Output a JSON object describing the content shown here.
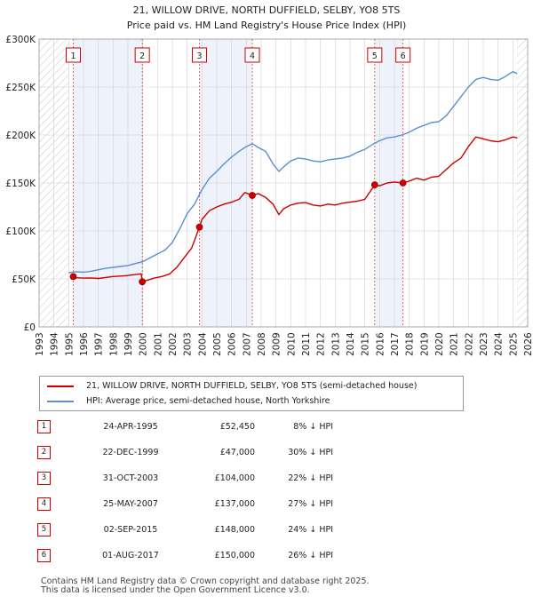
{
  "chart_data": {
    "type": "line",
    "title": "21, WILLOW DRIVE, NORTH DUFFIELD, SELBY, YO8 5TS",
    "subtitle": "Price paid vs. HM Land Registry's House Price Index (HPI)",
    "xlim": [
      1993,
      2026
    ],
    "ylim": [
      0,
      300000
    ],
    "x_ticks": [
      1993,
      1994,
      1995,
      1996,
      1997,
      1998,
      1999,
      2000,
      2001,
      2002,
      2003,
      2004,
      2005,
      2006,
      2007,
      2008,
      2009,
      2010,
      2011,
      2012,
      2013,
      2014,
      2015,
      2016,
      2017,
      2018,
      2019,
      2020,
      2021,
      2022,
      2023,
      2024,
      2025,
      2026
    ],
    "y_ticks": [
      {
        "value": 0,
        "label": "£0"
      },
      {
        "value": 50000,
        "label": "£50K"
      },
      {
        "value": 100000,
        "label": "£100K"
      },
      {
        "value": 150000,
        "label": "£150K"
      },
      {
        "value": 200000,
        "label": "£200K"
      },
      {
        "value": 250000,
        "label": "£250K"
      },
      {
        "value": 300000,
        "label": "£300K"
      }
    ],
    "grid": true,
    "hatched_ranges": [
      [
        1993,
        1995.0
      ],
      [
        2025.25,
        2026
      ]
    ],
    "highlight_ranges": [
      [
        1995.31,
        1999.97
      ],
      [
        2003.83,
        2007.4
      ],
      [
        2015.67,
        2017.58
      ]
    ],
    "series": [
      {
        "name": "21, WILLOW DRIVE, NORTH DUFFIELD, SELBY, YO8 5TS (semi-detached house)",
        "color": "#cc0000",
        "points": [
          [
            1995.31,
            52450
          ],
          [
            1995.5,
            51200
          ],
          [
            1996.0,
            50800
          ],
          [
            1996.5,
            51000
          ],
          [
            1997.0,
            50500
          ],
          [
            1997.5,
            51500
          ],
          [
            1998.0,
            52500
          ],
          [
            1998.5,
            53000
          ],
          [
            1999.0,
            53500
          ],
          [
            1999.5,
            54500
          ],
          [
            1999.9,
            55300
          ],
          [
            1999.97,
            47000
          ],
          [
            2000.3,
            48500
          ],
          [
            2000.8,
            51000
          ],
          [
            2001.3,
            52500
          ],
          [
            2001.8,
            55000
          ],
          [
            2002.3,
            62000
          ],
          [
            2002.8,
            72000
          ],
          [
            2003.3,
            82000
          ],
          [
            2003.83,
            104000
          ],
          [
            2004.0,
            112000
          ],
          [
            2004.5,
            121000
          ],
          [
            2005.0,
            125000
          ],
          [
            2005.5,
            128000
          ],
          [
            2006.0,
            130000
          ],
          [
            2006.5,
            133000
          ],
          [
            2006.9,
            140000
          ],
          [
            2007.1,
            139000
          ],
          [
            2007.4,
            137000
          ],
          [
            2007.8,
            139000
          ],
          [
            2008.3,
            135000
          ],
          [
            2008.8,
            128000
          ],
          [
            2009.2,
            117000
          ],
          [
            2009.5,
            123000
          ],
          [
            2010.0,
            127000
          ],
          [
            2010.5,
            129000
          ],
          [
            2011.0,
            129500
          ],
          [
            2011.5,
            127000
          ],
          [
            2012.0,
            126000
          ],
          [
            2012.5,
            128000
          ],
          [
            2013.0,
            127000
          ],
          [
            2013.5,
            129000
          ],
          [
            2014.0,
            130000
          ],
          [
            2014.5,
            131000
          ],
          [
            2015.0,
            133000
          ],
          [
            2015.67,
            148000
          ],
          [
            2016.0,
            147000
          ],
          [
            2016.5,
            150000
          ],
          [
            2017.0,
            151000
          ],
          [
            2017.58,
            150000
          ],
          [
            2018.0,
            152000
          ],
          [
            2018.5,
            155000
          ],
          [
            2019.0,
            153000
          ],
          [
            2019.5,
            156000
          ],
          [
            2020.0,
            157000
          ],
          [
            2020.5,
            164000
          ],
          [
            2021.0,
            171000
          ],
          [
            2021.5,
            176000
          ],
          [
            2022.0,
            188000
          ],
          [
            2022.5,
            198000
          ],
          [
            2023.0,
            196000
          ],
          [
            2023.5,
            194000
          ],
          [
            2024.0,
            193000
          ],
          [
            2024.5,
            195000
          ],
          [
            2025.0,
            198000
          ],
          [
            2025.3,
            197000
          ]
        ]
      },
      {
        "name": "HPI: Average price, semi-detached house, North Yorkshire",
        "color": "#5b8fd0",
        "points": [
          [
            1995.0,
            56500
          ],
          [
            1995.5,
            57500
          ],
          [
            1996.0,
            57000
          ],
          [
            1996.5,
            58000
          ],
          [
            1997.0,
            59500
          ],
          [
            1997.5,
            61000
          ],
          [
            1998.0,
            62000
          ],
          [
            1998.5,
            63000
          ],
          [
            1999.0,
            64000
          ],
          [
            1999.5,
            66000
          ],
          [
            2000.0,
            68000
          ],
          [
            2000.5,
            72000
          ],
          [
            2001.0,
            76000
          ],
          [
            2001.5,
            80000
          ],
          [
            2002.0,
            88000
          ],
          [
            2002.5,
            102000
          ],
          [
            2003.0,
            118000
          ],
          [
            2003.5,
            128000
          ],
          [
            2004.0,
            143000
          ],
          [
            2004.5,
            155000
          ],
          [
            2005.0,
            162000
          ],
          [
            2005.5,
            170000
          ],
          [
            2006.0,
            177000
          ],
          [
            2006.5,
            183000
          ],
          [
            2007.0,
            188000
          ],
          [
            2007.4,
            191000
          ],
          [
            2007.8,
            187000
          ],
          [
            2008.3,
            183000
          ],
          [
            2008.8,
            170000
          ],
          [
            2009.2,
            162000
          ],
          [
            2009.6,
            168000
          ],
          [
            2010.0,
            173000
          ],
          [
            2010.5,
            176000
          ],
          [
            2011.0,
            175000
          ],
          [
            2011.5,
            173000
          ],
          [
            2012.0,
            172000
          ],
          [
            2012.5,
            174000
          ],
          [
            2013.0,
            175000
          ],
          [
            2013.5,
            176000
          ],
          [
            2014.0,
            178000
          ],
          [
            2014.5,
            182000
          ],
          [
            2015.0,
            185000
          ],
          [
            2015.5,
            190000
          ],
          [
            2016.0,
            194000
          ],
          [
            2016.5,
            197000
          ],
          [
            2017.0,
            198000
          ],
          [
            2017.5,
            200000
          ],
          [
            2018.0,
            203000
          ],
          [
            2018.5,
            207000
          ],
          [
            2019.0,
            210000
          ],
          [
            2019.5,
            213000
          ],
          [
            2020.0,
            214000
          ],
          [
            2020.5,
            220000
          ],
          [
            2021.0,
            230000
          ],
          [
            2021.5,
            240000
          ],
          [
            2022.0,
            250000
          ],
          [
            2022.5,
            258000
          ],
          [
            2023.0,
            260000
          ],
          [
            2023.5,
            258000
          ],
          [
            2024.0,
            257000
          ],
          [
            2024.5,
            261000
          ],
          [
            2025.0,
            266000
          ],
          [
            2025.3,
            264000
          ]
        ]
      }
    ],
    "markers": [
      {
        "label": "1",
        "date": "24-APR-1995",
        "x": 1995.31,
        "price": 52450,
        "delta": "8% ↓ HPI"
      },
      {
        "label": "2",
        "date": "22-DEC-1999",
        "x": 1999.97,
        "price": 47000,
        "delta": "30% ↓ HPI"
      },
      {
        "label": "3",
        "date": "31-OCT-2003",
        "x": 2003.83,
        "price": 104000,
        "delta": "22% ↓ HPI"
      },
      {
        "label": "4",
        "date": "25-MAY-2007",
        "x": 2007.4,
        "price": 137000,
        "delta": "27% ↓ HPI"
      },
      {
        "label": "5",
        "date": "02-SEP-2015",
        "x": 2015.67,
        "price": 148000,
        "delta": "24% ↓ HPI"
      },
      {
        "label": "6",
        "date": "01-AUG-2017",
        "x": 2017.58,
        "price": 150000,
        "delta": "26% ↓ HPI"
      }
    ]
  },
  "legend": {
    "property": "21, WILLOW DRIVE, NORTH DUFFIELD, SELBY, YO8 5TS (semi-detached house)",
    "hpi": "HPI: Average price, semi-detached house, North Yorkshire"
  },
  "sales_table": [
    {
      "num": "1",
      "date": "24-APR-1995",
      "price": "£52,450",
      "delta": "8% ↓ HPI"
    },
    {
      "num": "2",
      "date": "22-DEC-1999",
      "price": "£47,000",
      "delta": "30% ↓ HPI"
    },
    {
      "num": "3",
      "date": "31-OCT-2003",
      "price": "£104,000",
      "delta": "22% ↓ HPI"
    },
    {
      "num": "4",
      "date": "25-MAY-2007",
      "price": "£137,000",
      "delta": "27% ↓ HPI"
    },
    {
      "num": "5",
      "date": "02-SEP-2015",
      "price": "£148,000",
      "delta": "24% ↓ HPI"
    },
    {
      "num": "6",
      "date": "01-AUG-2017",
      "price": "£150,000",
      "delta": "26% ↓ HPI"
    }
  ],
  "footer": {
    "line1": "Contains HM Land Registry data © Crown copyright and database right 2025.",
    "line2": "This data is licensed under the Open Government Licence v3.0."
  },
  "colors": {
    "property": "#cc0000",
    "hpi": "#5b8fd0",
    "highlight": "#eef2fb",
    "grid": "#d0d0d0"
  }
}
